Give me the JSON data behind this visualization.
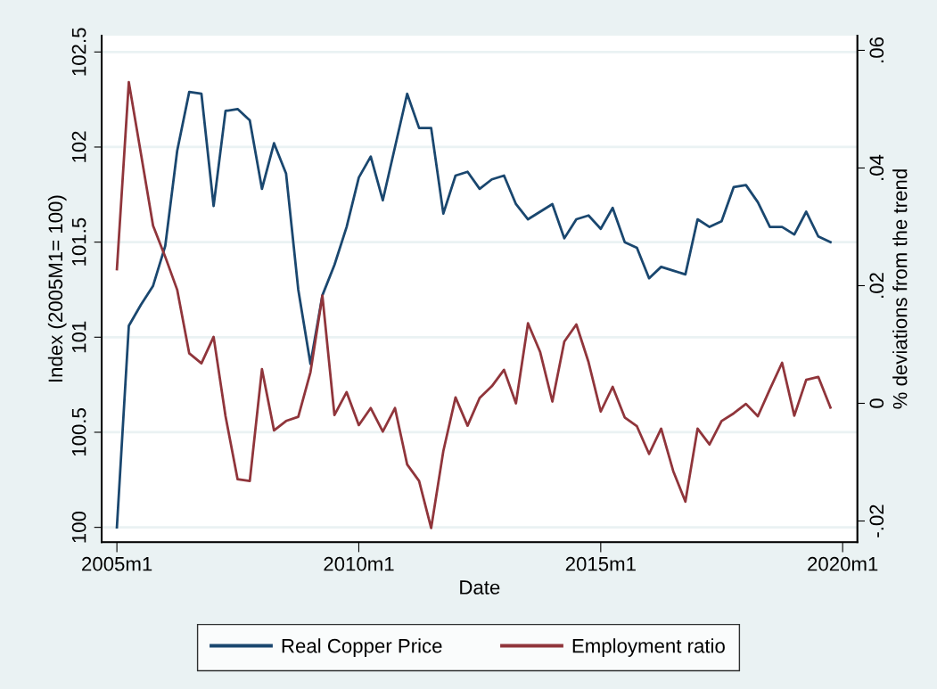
{
  "chart_data": {
    "type": "line",
    "xlabel": "Date",
    "ylabel": "Index (2005M1= 100)",
    "y2label": "% deviations from the trend",
    "x": [
      "2005-01",
      "2005-04",
      "2005-07",
      "2005-10",
      "2006-01",
      "2006-04",
      "2006-07",
      "2006-10",
      "2007-01",
      "2007-04",
      "2007-07",
      "2007-10",
      "2008-01",
      "2008-04",
      "2008-07",
      "2008-10",
      "2009-01",
      "2009-04",
      "2009-07",
      "2009-10",
      "2010-01",
      "2010-04",
      "2010-07",
      "2010-10",
      "2011-01",
      "2011-04",
      "2011-07",
      "2011-10",
      "2012-01",
      "2012-04",
      "2012-07",
      "2012-10",
      "2013-01",
      "2013-04",
      "2013-07",
      "2013-10",
      "2014-01",
      "2014-04",
      "2014-07",
      "2014-10",
      "2015-01",
      "2015-04",
      "2015-07",
      "2015-10",
      "2016-01",
      "2016-04",
      "2016-07",
      "2016-10",
      "2017-01",
      "2017-04",
      "2017-07",
      "2017-10",
      "2018-01",
      "2018-04",
      "2018-07",
      "2018-10",
      "2019-01",
      "2019-04",
      "2019-07",
      "2019-10"
    ],
    "series": [
      {
        "name": "Real Copper Price",
        "color": "#1a476f",
        "values": [
          100.0,
          101.06,
          101.17,
          101.27,
          101.48,
          101.98,
          102.29,
          102.28,
          101.69,
          102.19,
          102.2,
          102.14,
          101.78,
          102.02,
          101.86,
          101.25,
          100.86,
          101.22,
          101.38,
          101.58,
          101.84,
          101.95,
          101.72,
          102.0,
          102.28,
          102.1,
          102.1,
          101.65,
          101.85,
          101.87,
          101.78,
          101.83,
          101.85,
          101.7,
          101.62,
          101.66,
          101.7,
          101.52,
          101.62,
          101.64,
          101.57,
          101.68,
          101.5,
          101.47,
          101.31,
          101.37,
          101.35,
          101.33,
          101.62,
          101.58,
          101.61,
          101.79,
          101.8,
          101.71,
          101.58,
          101.58,
          101.54,
          101.66,
          101.53,
          101.5
        ]
      },
      {
        "name": "Employment ratio",
        "color": "#90353b",
        "axis": "y2",
        "values": [
          0.0228,
          0.0546,
          0.0425,
          0.0302,
          0.0249,
          0.0193,
          0.0085,
          0.0068,
          0.0113,
          -0.0022,
          -0.0129,
          -0.0132,
          0.0058,
          -0.0046,
          -0.003,
          -0.0023,
          0.0053,
          0.0183,
          -0.002,
          0.0019,
          -0.0037,
          -0.0008,
          -0.0048,
          -0.0008,
          -0.0104,
          -0.0132,
          -0.0212,
          -0.0081,
          0.001,
          -0.0038,
          0.0009,
          0.0029,
          0.0057,
          0.0,
          0.0136,
          0.0087,
          0.0003,
          0.0105,
          0.0134,
          0.007,
          -0.0014,
          0.0028,
          -0.0024,
          -0.0039,
          -0.0086,
          -0.0043,
          -0.0115,
          -0.0167,
          -0.0043,
          -0.007,
          -0.003,
          -0.0017,
          -0.0001,
          -0.0022,
          0.0024,
          0.0069,
          -0.0021,
          0.004,
          0.0045,
          -0.0007
        ]
      }
    ],
    "xlim": [
      "2004-09-08",
      "2020-04-21"
    ],
    "xticks": [
      {
        "value": "2005-01",
        "label": "2005m1"
      },
      {
        "value": "2010-01",
        "label": "2010m1"
      },
      {
        "value": "2015-01",
        "label": "2015m1"
      },
      {
        "value": "2020-01",
        "label": "2020m1"
      }
    ],
    "ylim": [
      99.922,
      102.586
    ],
    "yticks": [
      100,
      100.5,
      101,
      101.5,
      102,
      102.5
    ],
    "y2lim": [
      -0.0236,
      0.0625
    ],
    "y2ticks": [
      {
        "value": -0.02,
        "label": "-.02"
      },
      {
        "value": 0,
        "label": "0"
      },
      {
        "value": 0.02,
        "label": ".02"
      },
      {
        "value": 0.04,
        "label": ".04"
      },
      {
        "value": 0.06,
        "label": ".06"
      }
    ],
    "grid": "y",
    "legend": "bottom",
    "marker": "none",
    "line_style": "solid"
  }
}
